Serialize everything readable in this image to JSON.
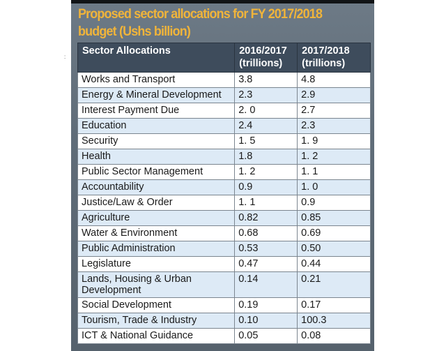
{
  "title": "Proposed sector allocations for FY 2017/2018 budget (Ushs billion)",
  "table": {
    "headers": [
      "Sector Allocations",
      "2016/2017 (trillions)",
      "2017/2018 (trillions)"
    ],
    "rows": [
      [
        "Works and Transport",
        "3.8",
        "4.8"
      ],
      [
        "Energy & Mineral Development",
        "2.3",
        "2.9"
      ],
      [
        "Interest Payment Due",
        "2. 0",
        "2.7"
      ],
      [
        "Education",
        "2.4",
        "2.3"
      ],
      [
        "Security",
        "1. 5",
        "1. 9"
      ],
      [
        "Health",
        "1.8",
        "1. 2"
      ],
      [
        "Public Sector Management",
        "1. 2",
        "1. 1"
      ],
      [
        "Accountability",
        "0.9",
        "1. 0"
      ],
      [
        "Justice/Law & Order",
        "1. 1",
        "0.9"
      ],
      [
        "Agriculture",
        "0.82",
        "0.85"
      ],
      [
        "Water & Environment",
        "0.68",
        "0.69"
      ],
      [
        "Public Administration",
        "0.53",
        "0.50"
      ],
      [
        "Legislature",
        "0.47",
        "0.44"
      ],
      [
        "Lands, Housing & Urban Development",
        "0.14",
        "0.21"
      ],
      [
        "Social Development",
        "0.19",
        "0.17"
      ],
      [
        "Tourism, Trade & Industry",
        "0.10",
        "100.3"
      ],
      [
        "ICT & National Guidance",
        "0.05",
        "0.08"
      ]
    ]
  },
  "colors": {
    "title": "#f0b43a",
    "panel": "#5f6c78",
    "header": "#3e4c5c",
    "row_alt": "#ddeaf6"
  },
  "stray_mark": ":"
}
